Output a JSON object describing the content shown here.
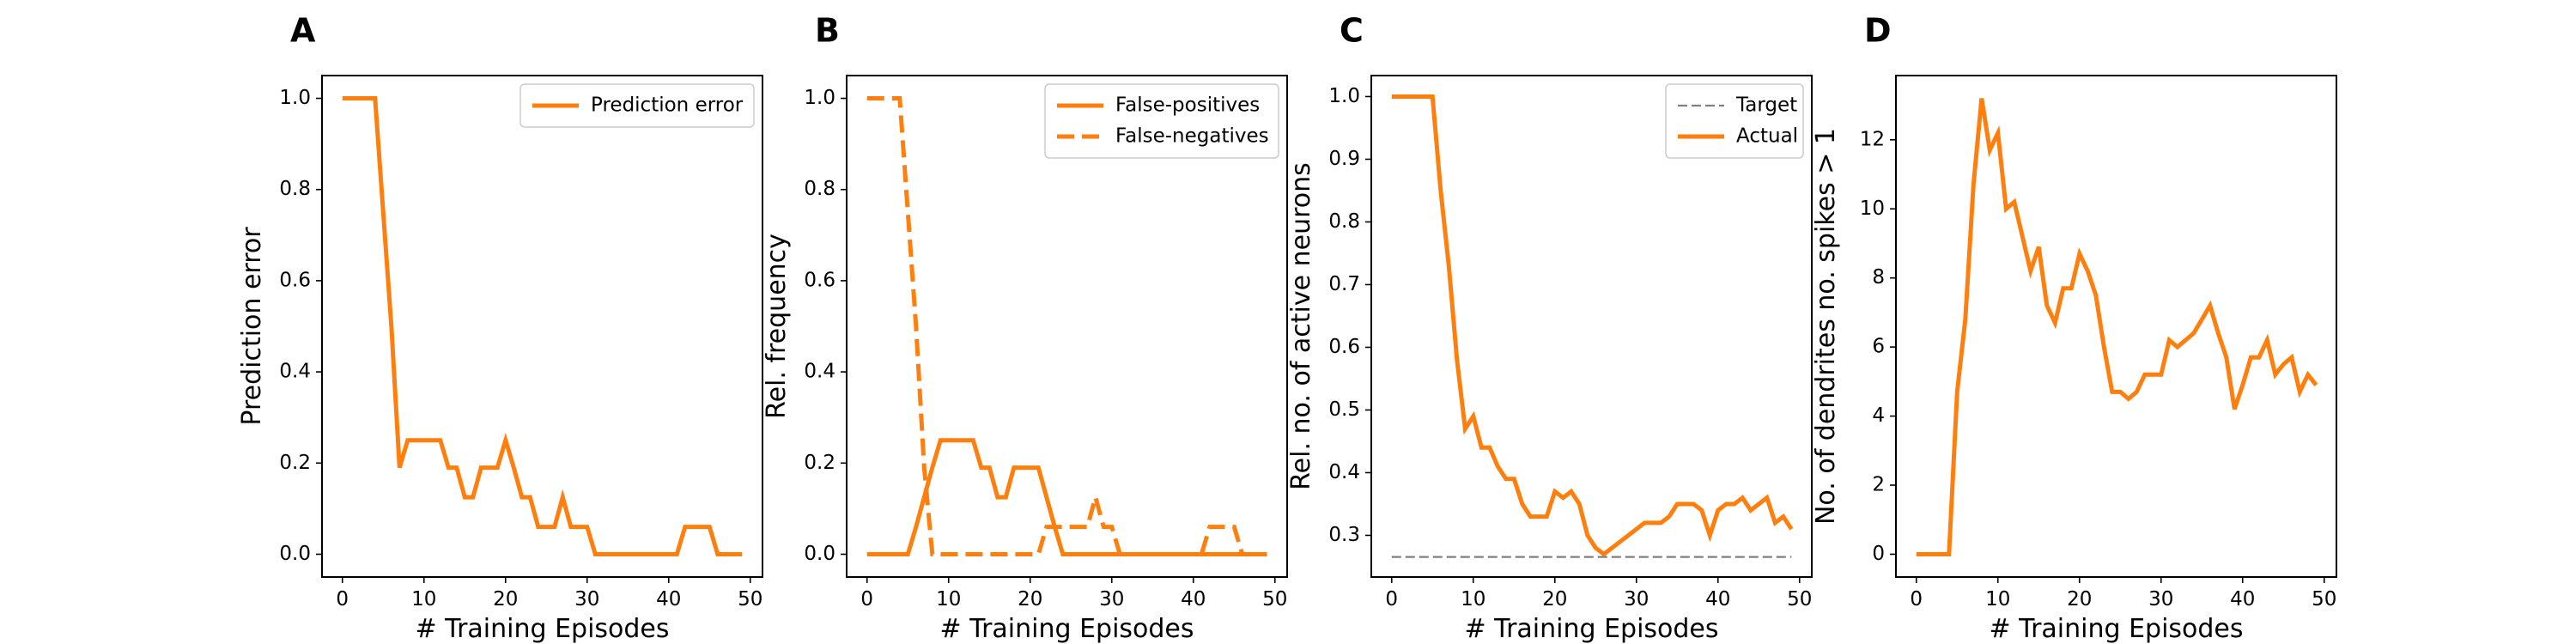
{
  "chart_data": [
    {
      "panel": "A",
      "type": "line",
      "xlabel": "# Training Episodes",
      "ylabel": "Prediction error",
      "xlim": [
        -2.5,
        51.5
      ],
      "ylim": [
        -0.05,
        1.05
      ],
      "xticks": [
        0,
        10,
        20,
        30,
        40,
        50
      ],
      "yticks": [
        0.0,
        0.2,
        0.4,
        0.6,
        0.8,
        1.0
      ],
      "ytick_labels": [
        "0.0",
        "0.2",
        "0.4",
        "0.6",
        "0.8",
        "1.0"
      ],
      "legend_position": "top-right",
      "series": [
        {
          "name": "Prediction error",
          "color": "#ff7f0e",
          "dash": "solid",
          "x": [
            0,
            1,
            2,
            3,
            4,
            5,
            6,
            7,
            8,
            9,
            10,
            11,
            12,
            13,
            14,
            15,
            16,
            17,
            18,
            19,
            20,
            21,
            22,
            23,
            24,
            25,
            26,
            27,
            28,
            29,
            30,
            31,
            32,
            33,
            34,
            35,
            36,
            37,
            38,
            39,
            40,
            41,
            42,
            43,
            44,
            45,
            46,
            47,
            48,
            49
          ],
          "y": [
            1.0,
            1.0,
            1.0,
            1.0,
            1.0,
            0.75,
            0.5,
            0.19,
            0.25,
            0.25,
            0.25,
            0.25,
            0.25,
            0.19,
            0.19,
            0.125,
            0.125,
            0.19,
            0.19,
            0.19,
            0.25,
            0.19,
            0.125,
            0.125,
            0.06,
            0.06,
            0.06,
            0.125,
            0.06,
            0.06,
            0.06,
            0.0,
            0.0,
            0.0,
            0.0,
            0.0,
            0.0,
            0.0,
            0.0,
            0.0,
            0.0,
            0.0,
            0.06,
            0.06,
            0.06,
            0.06,
            0.0,
            0.0,
            0.0,
            0.0
          ]
        }
      ]
    },
    {
      "panel": "B",
      "type": "line",
      "xlabel": "# Training Episodes",
      "ylabel": "Rel. frequency",
      "xlim": [
        -2.5,
        51.5
      ],
      "ylim": [
        -0.05,
        1.05
      ],
      "xticks": [
        0,
        10,
        20,
        30,
        40,
        50
      ],
      "yticks": [
        0.0,
        0.2,
        0.4,
        0.6,
        0.8,
        1.0
      ],
      "ytick_labels": [
        "0.0",
        "0.2",
        "0.4",
        "0.6",
        "0.8",
        "1.0"
      ],
      "legend_position": "top-right",
      "series": [
        {
          "name": "False-positives",
          "color": "#ff7f0e",
          "dash": "solid",
          "x": [
            0,
            1,
            2,
            3,
            4,
            5,
            6,
            7,
            8,
            9,
            10,
            11,
            12,
            13,
            14,
            15,
            16,
            17,
            18,
            19,
            20,
            21,
            22,
            23,
            24,
            25,
            26,
            27,
            28,
            29,
            30,
            31,
            32,
            33,
            34,
            35,
            36,
            37,
            38,
            39,
            40,
            41,
            42,
            43,
            44,
            45,
            46,
            47,
            48,
            49
          ],
          "y": [
            0,
            0,
            0,
            0,
            0,
            0,
            0.06,
            0.125,
            0.19,
            0.25,
            0.25,
            0.25,
            0.25,
            0.25,
            0.19,
            0.19,
            0.125,
            0.125,
            0.19,
            0.19,
            0.19,
            0.19,
            0.125,
            0.06,
            0,
            0,
            0,
            0,
            0,
            0,
            0,
            0,
            0,
            0,
            0,
            0,
            0,
            0,
            0,
            0,
            0,
            0,
            0,
            0,
            0,
            0,
            0,
            0,
            0,
            0
          ]
        },
        {
          "name": "False-negatives",
          "color": "#ff7f0e",
          "dash": "dashed",
          "x": [
            0,
            1,
            2,
            3,
            4,
            5,
            6,
            7,
            8,
            9,
            10,
            11,
            12,
            13,
            14,
            15,
            16,
            17,
            18,
            19,
            20,
            21,
            22,
            23,
            24,
            25,
            26,
            27,
            28,
            29,
            30,
            31,
            32,
            33,
            34,
            35,
            36,
            37,
            38,
            39,
            40,
            41,
            42,
            43,
            44,
            45,
            46,
            47,
            48,
            49
          ],
          "y": [
            1.0,
            1.0,
            1.0,
            1.0,
            1.0,
            0.75,
            0.5,
            0.19,
            0,
            0,
            0,
            0,
            0,
            0,
            0,
            0,
            0,
            0,
            0,
            0,
            0,
            0,
            0.06,
            0.06,
            0.06,
            0.06,
            0.06,
            0.06,
            0.125,
            0.06,
            0.06,
            0,
            0,
            0,
            0,
            0,
            0,
            0,
            0,
            0,
            0,
            0,
            0.06,
            0.06,
            0.06,
            0.06,
            0,
            0,
            0,
            0
          ]
        }
      ]
    },
    {
      "panel": "C",
      "type": "line",
      "xlabel": "# Training Episodes",
      "ylabel": "Rel. no. of active neurons",
      "xlim": [
        -2.5,
        51.5
      ],
      "ylim": [
        0.2335,
        1.0335
      ],
      "xticks": [
        0,
        10,
        20,
        30,
        40,
        50
      ],
      "yticks": [
        0.3,
        0.4,
        0.5,
        0.6,
        0.7,
        0.8,
        0.9,
        1.0
      ],
      "ytick_labels": [
        "0.3",
        "0.4",
        "0.5",
        "0.6",
        "0.7",
        "0.8",
        "0.9",
        "1.0"
      ],
      "legend_position": "top-right",
      "series": [
        {
          "name": "Target",
          "color": "#808080",
          "dash": "dashed",
          "x": [
            0,
            49
          ],
          "y": [
            0.2656,
            0.2656
          ]
        },
        {
          "name": "Actual",
          "color": "#ff7f0e",
          "dash": "solid",
          "x": [
            0,
            1,
            2,
            3,
            4,
            5,
            6,
            7,
            8,
            9,
            10,
            11,
            12,
            13,
            14,
            15,
            16,
            17,
            18,
            19,
            20,
            21,
            22,
            23,
            24,
            25,
            26,
            27,
            28,
            29,
            30,
            31,
            32,
            33,
            34,
            35,
            36,
            37,
            38,
            39,
            40,
            41,
            42,
            43,
            44,
            45,
            46,
            47,
            48,
            49
          ],
          "y": [
            1.0,
            1.0,
            1.0,
            1.0,
            1.0,
            1.0,
            0.85,
            0.73,
            0.58,
            0.47,
            0.49,
            0.44,
            0.44,
            0.41,
            0.39,
            0.39,
            0.35,
            0.33,
            0.33,
            0.33,
            0.37,
            0.36,
            0.37,
            0.35,
            0.3,
            0.28,
            0.27,
            0.28,
            0.29,
            0.3,
            0.31,
            0.32,
            0.32,
            0.32,
            0.33,
            0.35,
            0.35,
            0.35,
            0.34,
            0.3,
            0.34,
            0.35,
            0.35,
            0.36,
            0.34,
            0.35,
            0.36,
            0.32,
            0.33,
            0.31
          ]
        }
      ]
    },
    {
      "panel": "D",
      "type": "line",
      "xlabel": "# Training Episodes",
      "ylabel": "No. of dendrites no. spikes > 1",
      "xlim": [
        -2.5,
        51.5
      ],
      "ylim": [
        -0.66,
        13.86
      ],
      "xticks": [
        0,
        10,
        20,
        30,
        40,
        50
      ],
      "yticks": [
        0,
        2,
        4,
        6,
        8,
        10,
        12
      ],
      "ytick_labels": [
        "0",
        "2",
        "4",
        "6",
        "8",
        "10",
        "12"
      ],
      "series": [
        {
          "color": "#ff7f0e",
          "dash": "solid",
          "x": [
            0,
            1,
            2,
            3,
            4,
            5,
            6,
            7,
            8,
            9,
            10,
            11,
            12,
            13,
            14,
            15,
            16,
            17,
            18,
            19,
            20,
            21,
            22,
            23,
            24,
            25,
            26,
            27,
            28,
            29,
            30,
            31,
            32,
            33,
            34,
            35,
            36,
            37,
            38,
            39,
            40,
            41,
            42,
            43,
            44,
            45,
            46,
            47,
            48,
            49
          ],
          "y": [
            0,
            0,
            0,
            0,
            0,
            4.7,
            6.8,
            10.7,
            13.2,
            11.7,
            12.2,
            10.0,
            10.2,
            9.2,
            8.2,
            8.9,
            7.2,
            6.7,
            7.7,
            7.7,
            8.7,
            8.2,
            7.5,
            6.0,
            4.7,
            4.7,
            4.5,
            4.7,
            5.2,
            5.2,
            5.2,
            6.2,
            6.0,
            6.2,
            6.4,
            6.8,
            7.2,
            6.4,
            5.7,
            4.2,
            4.9,
            5.7,
            5.7,
            6.2,
            5.2,
            5.5,
            5.7,
            4.7,
            5.2,
            4.9
          ]
        }
      ]
    }
  ]
}
